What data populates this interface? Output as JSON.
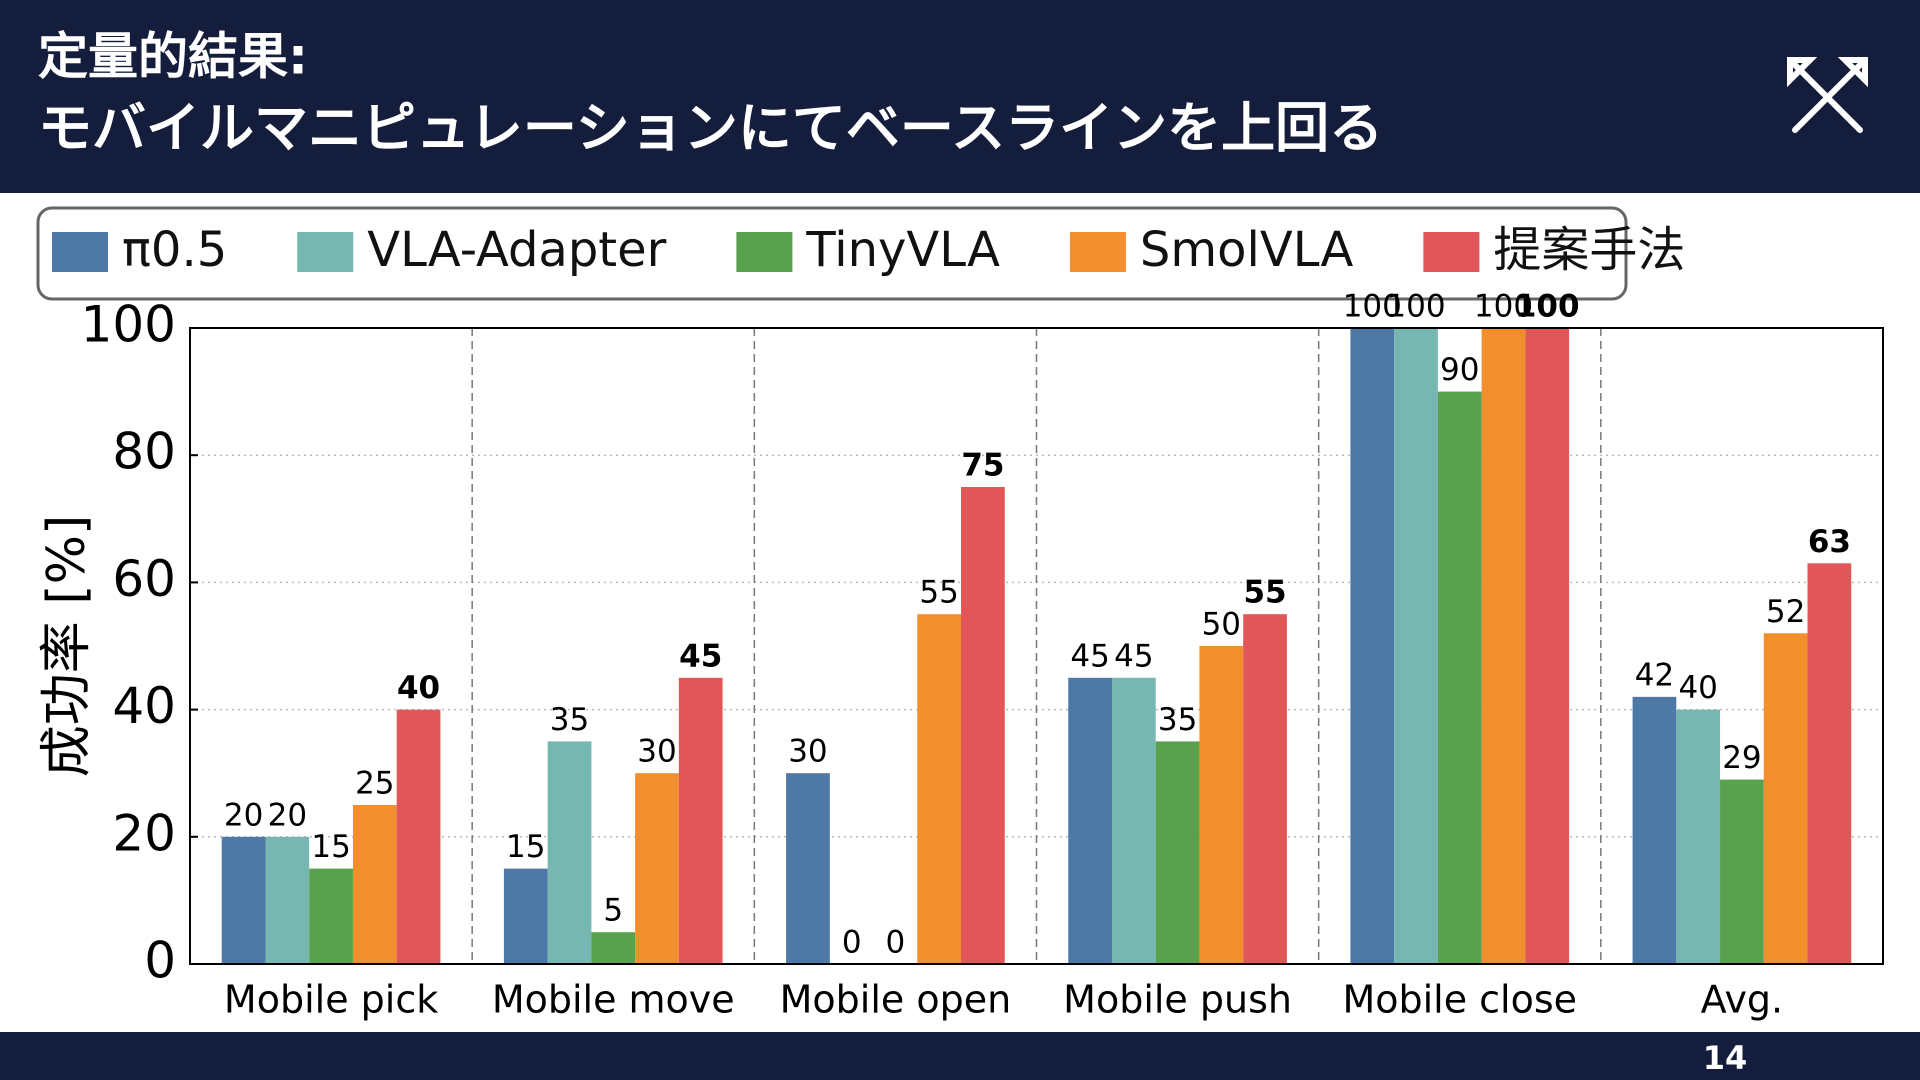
{
  "header": {
    "title_line1": "定量的結果:",
    "title_line2": "モバイルマニピュレーションにてベースラインを上回る"
  },
  "page_number": "14",
  "chart_data": {
    "type": "bar",
    "ylabel": "成功率 [%]",
    "categories": [
      "Mobile pick",
      "Mobile move",
      "Mobile open",
      "Mobile push",
      "Mobile close",
      "Avg."
    ],
    "series": [
      {
        "name": "π0.5",
        "color": "#4e79a7",
        "values": [
          20,
          15,
          30,
          45,
          100,
          42
        ]
      },
      {
        "name": "VLA-Adapter",
        "color": "#76b7b2",
        "values": [
          20,
          35,
          0,
          45,
          100,
          40
        ]
      },
      {
        "name": "TinyVLA",
        "color": "#59a14f",
        "values": [
          15,
          5,
          0,
          35,
          90,
          29
        ]
      },
      {
        "name": "SmolVLA",
        "color": "#f28e2b",
        "values": [
          25,
          30,
          55,
          50,
          100,
          52
        ]
      },
      {
        "name": "提案手法",
        "color": "#e15759",
        "values": [
          40,
          45,
          75,
          55,
          100,
          63
        ],
        "label_bold": true
      }
    ],
    "ylim": [
      0,
      100
    ],
    "yticks": [
      0,
      20,
      40,
      60,
      80,
      100
    ],
    "grid": true,
    "legend": "top"
  }
}
